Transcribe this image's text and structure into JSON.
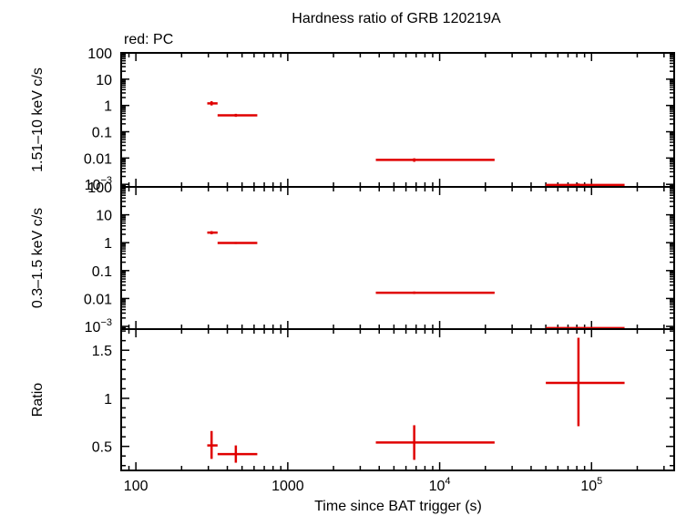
{
  "chart_data": {
    "type": "scatter",
    "title": "Hardness ratio of GRB 120219A",
    "legend_note": "red: PC",
    "xlabel": "Time since BAT trigger (s)",
    "x_scale": "log",
    "xlim": [
      80,
      350000
    ],
    "x_tick_labels": [
      "100",
      "1000",
      "10^4",
      "10^5"
    ],
    "panels": [
      {
        "id": "hard",
        "ylabel": "1.51–10 keV c/s",
        "y_scale": "log",
        "ylim": [
          0.0008,
          100
        ],
        "y_tick_labels": [
          "100",
          "10",
          "1",
          "0.1",
          "0.01",
          "10^-3"
        ],
        "points": [
          {
            "x": 315,
            "x_lo": 295,
            "x_hi": 345,
            "y": 1.2,
            "y_lo": 1.0,
            "y_hi": 1.45
          },
          {
            "x": 455,
            "x_lo": 345,
            "x_hi": 630,
            "y": 0.42,
            "y_lo": 0.37,
            "y_hi": 0.48
          },
          {
            "x": 6800,
            "x_lo": 3800,
            "x_hi": 23000,
            "y": 0.0085,
            "y_lo": 0.0072,
            "y_hi": 0.0098
          },
          {
            "x": 82000,
            "x_lo": 50000,
            "x_hi": 165000,
            "y": 0.00095,
            "y_lo": 0.00085,
            "y_hi": 0.00108
          }
        ]
      },
      {
        "id": "soft",
        "ylabel": "0.3–1.5 keV c/s",
        "y_scale": "log",
        "ylim": [
          0.0008,
          100
        ],
        "y_tick_labels": [
          "100",
          "10",
          "1",
          "0.1",
          "0.01",
          "10^-3"
        ],
        "points": [
          {
            "x": 315,
            "x_lo": 295,
            "x_hi": 345,
            "y": 2.3,
            "y_lo": 2.0,
            "y_hi": 2.6
          },
          {
            "x": 455,
            "x_lo": 345,
            "x_hi": 630,
            "y": 0.98,
            "y_lo": 0.9,
            "y_hi": 1.06
          },
          {
            "x": 6800,
            "x_lo": 3800,
            "x_hi": 23000,
            "y": 0.016,
            "y_lo": 0.0145,
            "y_hi": 0.0178
          },
          {
            "x": 82000,
            "x_lo": 50000,
            "x_hi": 165000,
            "y": 0.00087,
            "y_lo": 0.00079,
            "y_hi": 0.00096
          }
        ]
      },
      {
        "id": "ratio",
        "ylabel": "Ratio",
        "y_scale": "linear",
        "ylim": [
          0.25,
          1.72
        ],
        "y_tick_labels": [
          "1.5",
          "1",
          "0.5"
        ],
        "points": [
          {
            "x": 315,
            "x_lo": 295,
            "x_hi": 345,
            "y": 0.51,
            "y_lo": 0.37,
            "y_hi": 0.66
          },
          {
            "x": 455,
            "x_lo": 345,
            "x_hi": 630,
            "y": 0.42,
            "y_lo": 0.33,
            "y_hi": 0.51
          },
          {
            "x": 6800,
            "x_lo": 3800,
            "x_hi": 23000,
            "y": 0.54,
            "y_lo": 0.36,
            "y_hi": 0.72
          },
          {
            "x": 82000,
            "x_lo": 50000,
            "x_hi": 165000,
            "y": 1.16,
            "y_lo": 0.71,
            "y_hi": 1.63
          }
        ]
      }
    ],
    "colors": {
      "series": "#e00000",
      "axes": "#000000",
      "background": "#ffffff"
    }
  }
}
